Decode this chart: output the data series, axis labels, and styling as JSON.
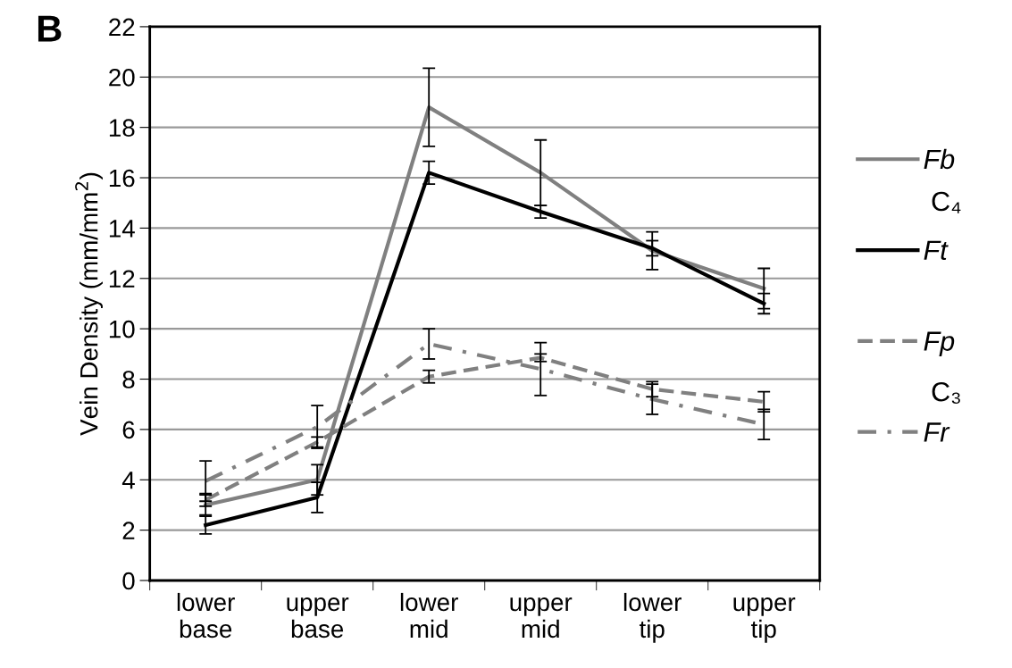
{
  "chart_data": {
    "type": "line",
    "title": "B",
    "ylabel": "Vein Density (mm/mm$^{2}$)",
    "categories": [
      "lower\nbase",
      "upper\nbase",
      "lower\nmid",
      "upper\nmid",
      "lower\ntip",
      "upper\ntip"
    ],
    "series": [
      {
        "name": "Fb",
        "color": "#808080",
        "line_style": "solid",
        "values": [
          3.0,
          4.0,
          18.8,
          16.2,
          13.1,
          11.6
        ],
        "errors": [
          0.4,
          0.6,
          1.55,
          1.3,
          0.75,
          0.8
        ]
      },
      {
        "name": "Ft",
        "color": "#000000",
        "line_style": "solid",
        "values": [
          2.2,
          3.3,
          16.2,
          14.65,
          13.2,
          11.0
        ],
        "errors": [
          0.35,
          0.6,
          0.45,
          0.25,
          0.3,
          0.4
        ]
      },
      {
        "name": "Fp",
        "color": "#808080",
        "line_style": "dashed",
        "values": [
          3.2,
          5.5,
          8.1,
          8.85,
          7.6,
          7.1
        ],
        "errors": [
          0.25,
          0.2,
          0.25,
          0.15,
          0.3,
          0.4
        ]
      },
      {
        "name": "Fr",
        "color": "#808080",
        "line_style": "dashdot",
        "values": [
          3.95,
          6.1,
          9.4,
          8.4,
          7.2,
          6.2
        ],
        "errors": [
          0.8,
          0.85,
          0.6,
          1.05,
          0.6,
          0.6
        ]
      }
    ],
    "ylim": [
      0,
      22
    ],
    "yticks": [
      0,
      2,
      4,
      6,
      8,
      10,
      12,
      14,
      16,
      18,
      20,
      22
    ],
    "grid": "y",
    "legend": "right",
    "marker": "none",
    "annotations": [
      "C₄",
      "C₃"
    ]
  }
}
